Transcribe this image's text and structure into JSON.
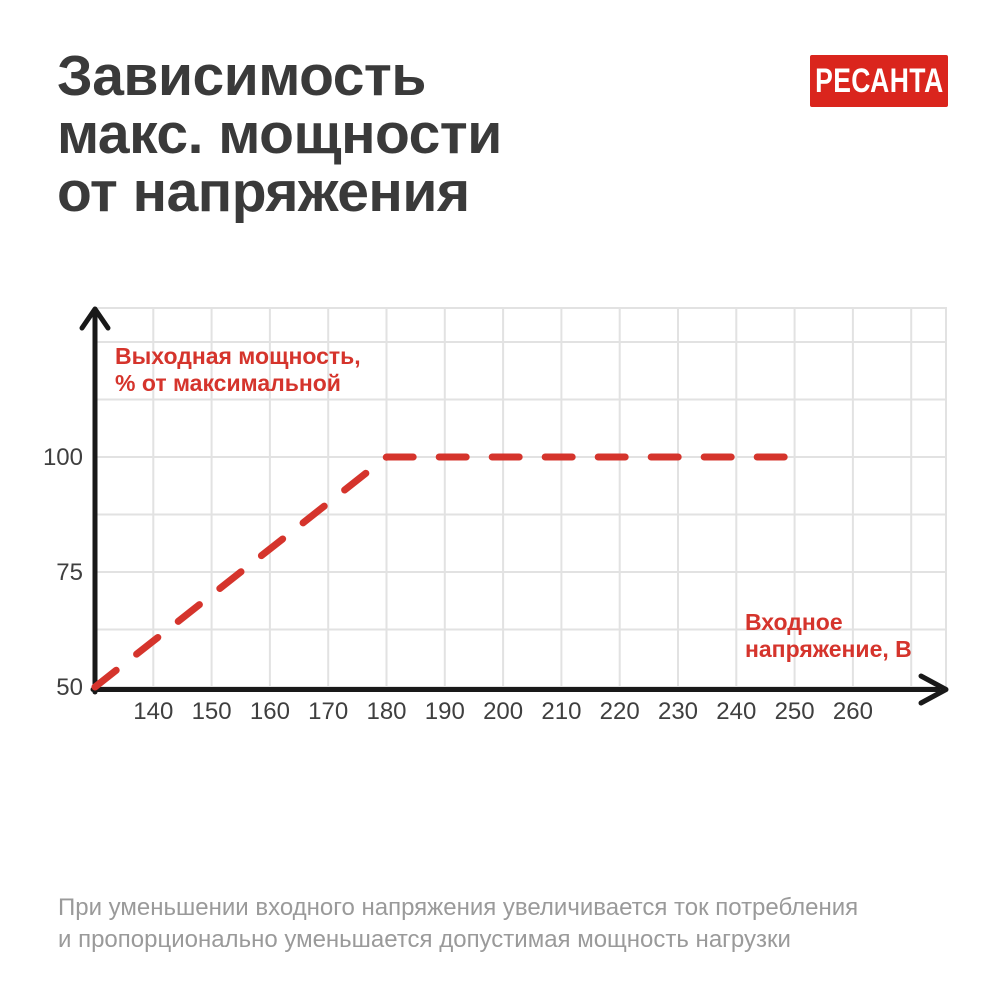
{
  "header": {
    "title_lines": [
      "Зависимость",
      "макс. мощности",
      "от напряжения"
    ],
    "title_color": "#3a3a3a",
    "brand": {
      "name": "РЕСАНТА",
      "bg_color": "#da251d",
      "text_color": "#ffffff"
    }
  },
  "chart_data": {
    "type": "line",
    "title": "Зависимость макс. мощности от напряжения",
    "ylabel": "Выходная мощность, % от максимальной",
    "xlabel": "Входное напряжение, В",
    "ylabel_lines": [
      "Выходная мощность,",
      "% от максимальной"
    ],
    "xlabel_lines": [
      "Входное",
      "напряжение, В"
    ],
    "x_ticks": [
      140,
      150,
      160,
      170,
      180,
      190,
      200,
      210,
      220,
      230,
      240,
      250,
      260
    ],
    "y_ticks": [
      50,
      75,
      100
    ],
    "xlim": [
      130,
      278
    ],
    "ylim": [
      50,
      132.5
    ],
    "grid": true,
    "grid_step_x": 10,
    "grid_step_y": 12.5,
    "legend": "none",
    "axis_color": "#191919",
    "grid_color": "#e2e2e2",
    "tick_color": "#3f3f3f",
    "accent_color": "#d5342c",
    "series": [
      {
        "name": "Выходная мощность, % от максимальной",
        "line_style": "dashed",
        "color": "#d5342c",
        "points": [
          [
            130,
            50
          ],
          [
            180,
            100
          ],
          [
            250,
            100
          ]
        ]
      }
    ]
  },
  "footnote": {
    "lines": [
      "При уменьшении входного напряжения увеличивается ток потребления",
      "и пропорционально уменьшается допустимая мощность нагрузки"
    ],
    "color": "#9a9a9a"
  }
}
